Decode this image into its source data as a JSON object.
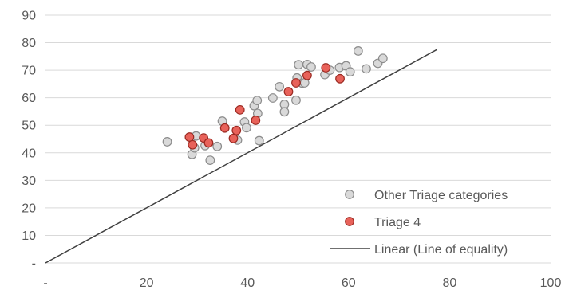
{
  "chart_data": {
    "type": "scatter",
    "title": "",
    "xlabel": "",
    "ylabel": "",
    "xlim": [
      0,
      100
    ],
    "ylim": [
      0,
      90
    ],
    "x_ticks": [
      {
        "value": 0,
        "label": "-"
      },
      {
        "value": 20,
        "label": "20"
      },
      {
        "value": 40,
        "label": "40"
      },
      {
        "value": 60,
        "label": "60"
      },
      {
        "value": 80,
        "label": "80"
      },
      {
        "value": 100,
        "label": "100"
      }
    ],
    "y_ticks": [
      {
        "value": 0,
        "label": "-"
      },
      {
        "value": 10,
        "label": "10"
      },
      {
        "value": 20,
        "label": "20"
      },
      {
        "value": 30,
        "label": "30"
      },
      {
        "value": 40,
        "label": "40"
      },
      {
        "value": 50,
        "label": "50"
      },
      {
        "value": 60,
        "label": "60"
      },
      {
        "value": 70,
        "label": "70"
      },
      {
        "value": 80,
        "label": "80"
      },
      {
        "value": 90,
        "label": "90"
      }
    ],
    "grid": "horizontal",
    "legend_position": "bottom-right",
    "series": [
      {
        "name": "Other Triage categories",
        "kind": "points",
        "fill": "#d9d9d9",
        "stroke": "#8c8c8c",
        "points": [
          [
            24.1,
            44.0
          ],
          [
            29.0,
            39.4
          ],
          [
            29.5,
            41.8
          ],
          [
            29.8,
            46.1
          ],
          [
            31.6,
            42.6
          ],
          [
            32.6,
            37.3
          ],
          [
            34.0,
            42.3
          ],
          [
            35.0,
            51.5
          ],
          [
            38.0,
            44.6
          ],
          [
            39.4,
            51.2
          ],
          [
            39.8,
            49.1
          ],
          [
            41.3,
            57.1
          ],
          [
            41.9,
            59.0
          ],
          [
            42.0,
            54.3
          ],
          [
            42.3,
            44.4
          ],
          [
            45.0,
            59.9
          ],
          [
            46.3,
            64.0
          ],
          [
            47.3,
            57.6
          ],
          [
            47.3,
            54.9
          ],
          [
            49.6,
            59.1
          ],
          [
            49.8,
            67.2
          ],
          [
            50.1,
            72.0
          ],
          [
            50.8,
            65.3
          ],
          [
            51.3,
            65.4
          ],
          [
            51.8,
            72.1
          ],
          [
            52.6,
            71.2
          ],
          [
            55.3,
            68.4
          ],
          [
            56.3,
            70.0
          ],
          [
            58.2,
            71.0
          ],
          [
            59.5,
            71.6
          ],
          [
            60.3,
            69.4
          ],
          [
            61.9,
            77.0
          ],
          [
            63.5,
            70.5
          ],
          [
            65.8,
            72.5
          ],
          [
            66.8,
            74.3
          ]
        ]
      },
      {
        "name": "Triage 4",
        "kind": "points",
        "fill": "#e8625a",
        "stroke": "#9b2a22",
        "points": [
          [
            28.5,
            45.7
          ],
          [
            29.1,
            42.9
          ],
          [
            31.3,
            45.4
          ],
          [
            32.3,
            43.6
          ],
          [
            35.5,
            49.0
          ],
          [
            37.2,
            45.2
          ],
          [
            37.8,
            48.1
          ],
          [
            38.5,
            55.6
          ],
          [
            41.6,
            51.8
          ],
          [
            48.1,
            62.2
          ],
          [
            49.6,
            65.4
          ],
          [
            51.8,
            68.1
          ],
          [
            55.5,
            70.9
          ],
          [
            58.3,
            66.9
          ]
        ]
      },
      {
        "name": "Linear (Line of equality)",
        "kind": "line",
        "stroke": "#404040",
        "points": [
          [
            0,
            0
          ],
          [
            77.5,
            77.5
          ]
        ]
      }
    ]
  }
}
